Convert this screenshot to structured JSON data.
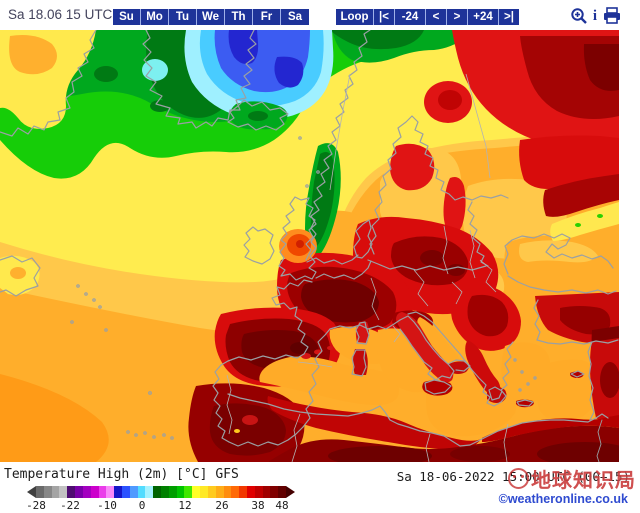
{
  "topbar": {
    "datetime_label": "Sa 18.06 15 UTC",
    "days": [
      "Su",
      "Mo",
      "Tu",
      "We",
      "Th",
      "Fr",
      "Sa"
    ],
    "loop_controls": [
      "Loop",
      "|<",
      "-24",
      "<",
      ">",
      "+24",
      ">|"
    ],
    "icons": [
      "zoom-in-icon",
      "info-icon",
      "print-icon"
    ],
    "button_color": "#1e3399"
  },
  "map": {
    "model": "GFS",
    "palette": {
      "cold_core_blue": "#2326d0",
      "cold_cyan": "#49ccff",
      "atlantic_green": "#16cd08",
      "dark_green": "#007a14",
      "mild_yellow": "#ffec4f",
      "warm_orange": "#ffae2b",
      "hot_red": "#d80c0c",
      "heatwave_dark_red": "#700000",
      "coastline_gray": "#9aa0a4"
    }
  },
  "legend": {
    "title": "Temperature High (2m) [°C] GFS",
    "timestamp": "Sa 18-06-2022 15:00 UTC (00+15)",
    "copyright": "©weatheronline.co.uk",
    "scale_ticks": [
      "-28",
      "-22",
      "-10",
      "0",
      "12",
      "26",
      "38",
      "48"
    ],
    "scale_colors": [
      "#6a6a6a",
      "#878787",
      "#a4a4a4",
      "#c2c2c2",
      "#4f0d72",
      "#7a00a8",
      "#a300c0",
      "#cc00cc",
      "#ea3cea",
      "#f989f9",
      "#1616c8",
      "#2b52ff",
      "#4f9aff",
      "#52dcff",
      "#a5f2ff",
      "#006400",
      "#008000",
      "#009e00",
      "#00c400",
      "#40e800",
      "#ffff28",
      "#ffe926",
      "#ffcb1e",
      "#ffad17",
      "#ff8d0e",
      "#ff6a06",
      "#f23800",
      "#e00000",
      "#c00000",
      "#a00000",
      "#800000",
      "#620000"
    ],
    "arrow_left_color": "#3f3f3f",
    "arrow_right_color": "#450000"
  },
  "watermark": {
    "text": "地球知识局"
  }
}
